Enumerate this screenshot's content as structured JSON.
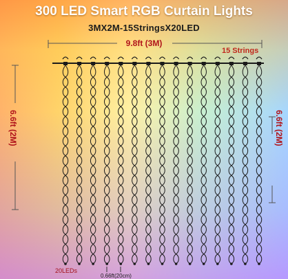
{
  "title": "300 LED Smart RGB Curtain Lights",
  "subtitle": "3MX2M-15StringsX20LED",
  "width_label": "9.8ft  (3M)",
  "strings_label": "15 Strings",
  "height_left_label": "6.6ft  (2M)",
  "height_right_label": "6.6ft  (2M)",
  "leds_label": "20LEDs",
  "spacing_label": "0.66ft(20cm)",
  "colors": {
    "wire": "#1a1a1a",
    "label_red": "#b0141b"
  },
  "strings_count": 15,
  "leds_per_string": 20
}
